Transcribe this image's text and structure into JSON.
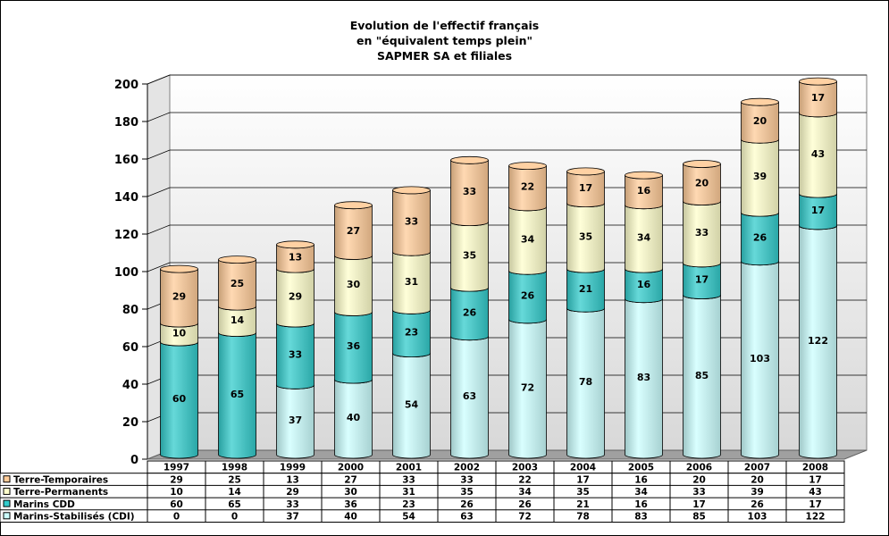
{
  "chart_data": {
    "type": "bar",
    "stacked": true,
    "title": [
      "Evolution de l'effectif français",
      "en \"équivalent temps plein\"",
      "SAPMER SA et filiales"
    ],
    "categories": [
      "1997",
      "1998",
      "1999",
      "2000",
      "2001",
      "2002",
      "2003",
      "2004",
      "2005",
      "2006",
      "2007",
      "2008"
    ],
    "ylim": [
      0,
      200
    ],
    "yticks": [
      0,
      20,
      40,
      60,
      80,
      100,
      120,
      140,
      160,
      180,
      200
    ],
    "grid": true,
    "series": [
      {
        "name": "Marins-Stabilisés (CDI)",
        "color": "#ccffff",
        "values": [
          0,
          0,
          37,
          40,
          54,
          63,
          72,
          78,
          83,
          85,
          103,
          122
        ]
      },
      {
        "name": "Marins CDD",
        "color": "#33cccc",
        "values": [
          60,
          65,
          33,
          36,
          23,
          26,
          26,
          21,
          16,
          17,
          26,
          17
        ]
      },
      {
        "name": "Terre-Permanents",
        "color": "#ffffcc",
        "values": [
          10,
          14,
          29,
          30,
          31,
          35,
          34,
          35,
          34,
          33,
          39,
          43
        ]
      },
      {
        "name": "Terre-Temporaires",
        "color": "#ffcc99",
        "values": [
          29,
          25,
          13,
          27,
          33,
          33,
          22,
          17,
          16,
          20,
          20,
          17
        ]
      }
    ],
    "table_rows_order": [
      "Terre-Temporaires",
      "Terre-Permanents",
      "Marins CDD",
      "Marins-Stabilisés (CDI)"
    ]
  }
}
